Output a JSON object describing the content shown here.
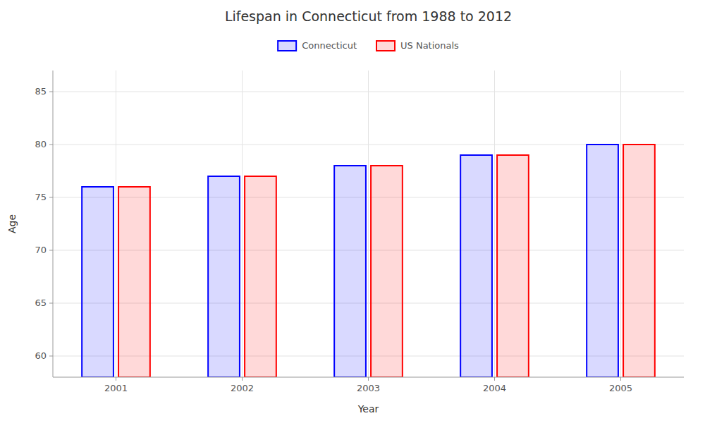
{
  "chart_data": {
    "type": "bar",
    "title": "Lifespan in Connecticut from 1988 to 2012",
    "x_label": "Year",
    "y_label": "Age",
    "categories": [
      "2001",
      "2002",
      "2003",
      "2004",
      "2005"
    ],
    "series": [
      {
        "name": "Connecticut",
        "color": "#0000ff",
        "values": [
          76,
          77,
          78,
          79,
          80
        ]
      },
      {
        "name": "US Nationals",
        "color": "#ff0000",
        "values": [
          76,
          77,
          78,
          79,
          80
        ]
      }
    ],
    "ylim": [
      58,
      87
    ],
    "yticks": [
      60,
      65,
      70,
      75,
      80,
      85
    ],
    "grid": true,
    "legend": "top"
  }
}
